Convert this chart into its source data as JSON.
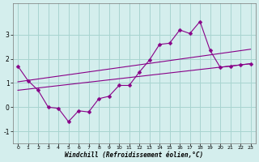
{
  "xlabel": "Windchill (Refroidissement éolien,°C)",
  "bg_color": "#d4eeed",
  "grid_color": "#a8d4d0",
  "line_color": "#880088",
  "xlim": [
    -0.5,
    23.5
  ],
  "ylim": [
    -1.5,
    4.3
  ],
  "xticks": [
    0,
    1,
    2,
    3,
    4,
    5,
    6,
    7,
    8,
    9,
    10,
    11,
    12,
    13,
    14,
    15,
    16,
    17,
    18,
    19,
    20,
    21,
    22,
    23
  ],
  "yticks": [
    -1,
    0,
    1,
    2,
    3
  ],
  "line1_x": [
    0,
    1,
    2,
    3,
    4,
    5,
    6,
    7,
    8,
    9,
    10,
    11,
    12,
    13,
    14,
    15,
    16,
    17,
    18,
    19,
    20,
    21,
    22,
    23
  ],
  "line1_y": [
    1.7,
    1.1,
    0.7,
    0.0,
    -0.05,
    -0.6,
    -0.15,
    -0.2,
    0.35,
    0.45,
    0.9,
    0.9,
    1.45,
    1.95,
    2.6,
    2.65,
    3.2,
    3.05,
    3.55,
    2.35,
    1.65,
    1.7,
    1.75,
    1.8
  ],
  "line2_x": [
    0,
    23
  ],
  "line2_y": [
    1.05,
    2.4
  ],
  "line3_x": [
    0,
    23
  ],
  "line3_y": [
    0.7,
    1.8
  ]
}
